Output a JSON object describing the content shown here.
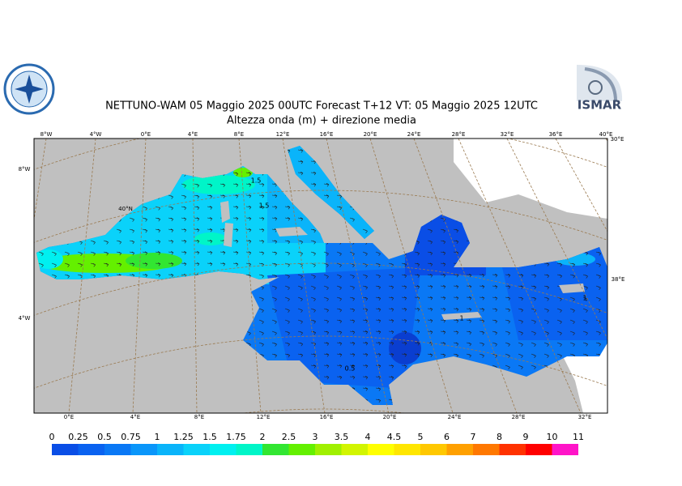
{
  "header": {
    "title": "NETTUNO-WAM  05   Maggio  2025 00UTC Forecast T+12 VT: 05   Maggio  2025 12UTC",
    "subtitle": "Altezza onda (m) + direzione media",
    "logo_right": "ISMAR"
  },
  "map": {
    "top_labels": [
      "8°W",
      "4°W",
      "0°E",
      "4°E",
      "8°E",
      "12°E",
      "16°E",
      "20°E",
      "24°E",
      "28°E",
      "32°E",
      "36°E",
      "40°E"
    ],
    "bottom_labels": [
      "0°E",
      "4°E",
      "8°E",
      "12°E",
      "16°E",
      "20°E",
      "24°E",
      "28°E",
      "32°E"
    ],
    "left_labels": [
      "8°W",
      "40°N",
      "4°W"
    ],
    "right_labels": [
      "30°E",
      "38°E"
    ],
    "contour_labels": [
      "1.5",
      "1.5",
      "0.5",
      "1",
      "1"
    ]
  },
  "legend": {
    "labels": [
      "0",
      "0.25",
      "0.5",
      "0.75",
      "1",
      "1.25",
      "1.5",
      "1.75",
      "2",
      "2.5",
      "3",
      "3.5",
      "4",
      "4.5",
      "5",
      "6",
      "7",
      "8",
      "9",
      "10",
      "11"
    ],
    "colors": [
      "#0a4ee6",
      "#0a62f0",
      "#0a78f5",
      "#0a96fa",
      "#0ab4fa",
      "#0ad2fa",
      "#00f0f0",
      "#00f5c8",
      "#32e632",
      "#64f000",
      "#a0f000",
      "#d2f500",
      "#ffff00",
      "#ffe600",
      "#ffc800",
      "#ffa000",
      "#ff7800",
      "#ff3200",
      "#ff0000",
      "#ff14c8"
    ]
  }
}
